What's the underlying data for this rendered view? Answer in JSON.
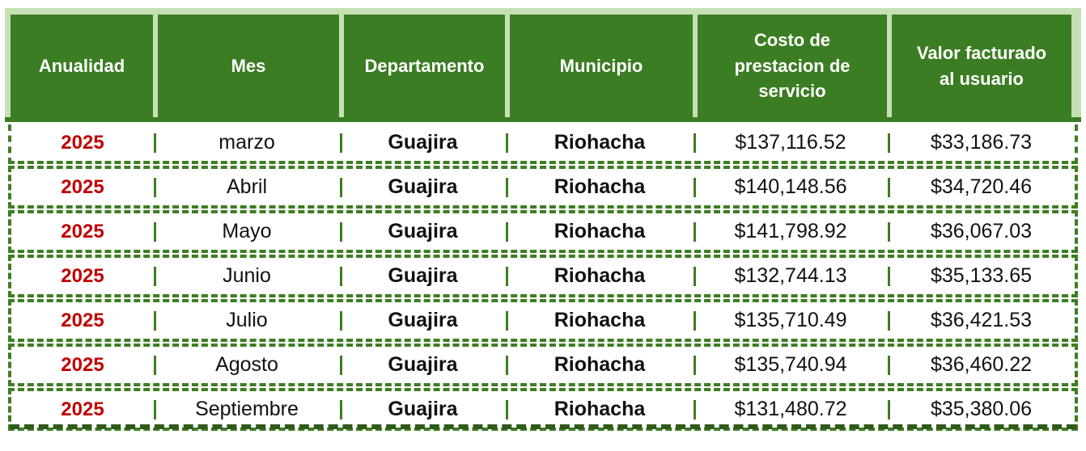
{
  "colors": {
    "header_green": "#3B7D23",
    "light_green_frame": "#C6E0B4",
    "dashed_border_green": "#3F7D23",
    "bottom_border_dark_green": "#2F5A1A",
    "year_red": "#C00000",
    "row_background": "#FFFFFF",
    "header_text": "#FFFFFF"
  },
  "table": {
    "columns": [
      {
        "key": "anualidad",
        "label": "Anualidad"
      },
      {
        "key": "mes",
        "label": "Mes"
      },
      {
        "key": "departamento",
        "label": "Departamento"
      },
      {
        "key": "municipio",
        "label": "Municipio"
      },
      {
        "key": "costo",
        "label": "Costo de\nprestacion de\nservicio"
      },
      {
        "key": "valor",
        "label": "Valor facturado\nal usuario"
      }
    ],
    "rows": [
      {
        "anualidad": "2025",
        "mes": "marzo",
        "departamento": "Guajira",
        "municipio": "Riohacha",
        "costo": "$137,116.52",
        "valor": "$33,186.73"
      },
      {
        "anualidad": "2025",
        "mes": "Abril",
        "departamento": "Guajira",
        "municipio": "Riohacha",
        "costo": "$140,148.56",
        "valor": "$34,720.46"
      },
      {
        "anualidad": "2025",
        "mes": "Mayo",
        "departamento": "Guajira",
        "municipio": "Riohacha",
        "costo": "$141,798.92",
        "valor": "$36,067.03"
      },
      {
        "anualidad": "2025",
        "mes": "Junio",
        "departamento": "Guajira",
        "municipio": "Riohacha",
        "costo": "$132,744.13",
        "valor": "$35,133.65"
      },
      {
        "anualidad": "2025",
        "mes": "Julio",
        "departamento": "Guajira",
        "municipio": "Riohacha",
        "costo": "$135,710.49",
        "valor": "$36,421.53"
      },
      {
        "anualidad": "2025",
        "mes": "Agosto",
        "departamento": "Guajira",
        "municipio": "Riohacha",
        "costo": "$135,740.94",
        "valor": "$36,460.22"
      },
      {
        "anualidad": "2025",
        "mes": "Septiembre",
        "departamento": "Guajira",
        "municipio": "Riohacha",
        "costo": "$131,480.72",
        "valor": "$35,380.06"
      }
    ]
  },
  "chart_data": {
    "type": "table",
    "title": "",
    "columns": [
      "Anualidad",
      "Mes",
      "Departamento",
      "Municipio",
      "Costo de prestacion de servicio",
      "Valor facturado al usuario"
    ],
    "categories": [
      "marzo",
      "Abril",
      "Mayo",
      "Junio",
      "Julio",
      "Agosto",
      "Septiembre"
    ],
    "series": [
      {
        "name": "Costo de prestacion de servicio",
        "values": [
          137116.52,
          140148.56,
          141798.92,
          132744.13,
          135710.49,
          135740.94,
          131480.72
        ]
      },
      {
        "name": "Valor facturado al usuario",
        "values": [
          33186.73,
          34720.46,
          36067.03,
          35133.65,
          36421.53,
          36460.22,
          35380.06
        ]
      }
    ],
    "year": 2025,
    "departamento": "Guajira",
    "municipio": "Riohacha",
    "currency": "$"
  }
}
